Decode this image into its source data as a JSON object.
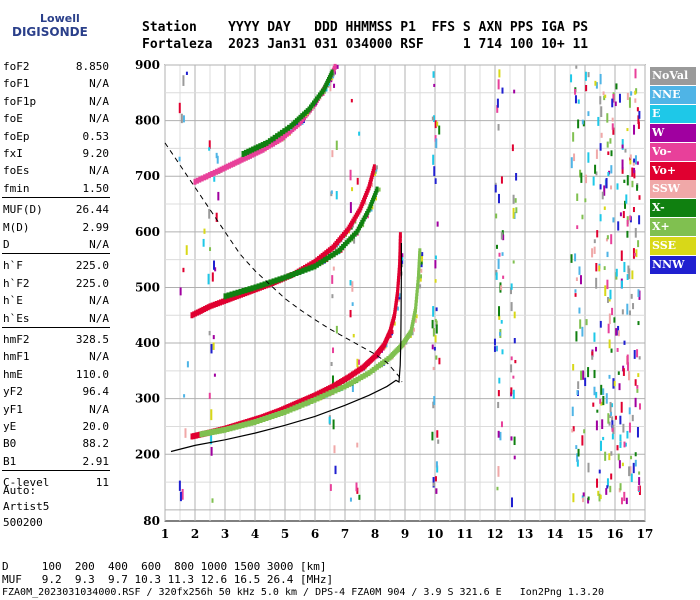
{
  "logo": {
    "line1": "Lowell",
    "line2": "DIGISONDE"
  },
  "header": {
    "row1": "Station    YYYY DAY   DDD HHMMSS P1  FFS S AXN PPS IGA PS",
    "row2": "Fortaleza  2023 Jan31 031 034000 RSF     1 714 100 10+ 11"
  },
  "params": [
    {
      "k": "foF2",
      "v": "8.850"
    },
    {
      "k": "foF1",
      "v": "N/A"
    },
    {
      "k": "foF1p",
      "v": "N/A"
    },
    {
      "k": "foE",
      "v": "N/A"
    },
    {
      "k": "foEp",
      "v": "0.53"
    },
    {
      "k": "fxI",
      "v": "9.20"
    },
    {
      "k": "foEs",
      "v": "N/A"
    },
    {
      "k": "fmin",
      "v": "1.50"
    },
    {
      "k": "MUF(D)",
      "v": "26.44"
    },
    {
      "k": "M(D)",
      "v": "2.99"
    },
    {
      "k": "D",
      "v": "N/A"
    },
    {
      "k": "h`F",
      "v": "225.0"
    },
    {
      "k": "h`F2",
      "v": "225.0"
    },
    {
      "k": "h`E",
      "v": "N/A"
    },
    {
      "k": "h`Es",
      "v": "N/A"
    },
    {
      "k": "hmF2",
      "v": "328.5"
    },
    {
      "k": "hmF1",
      "v": "N/A"
    },
    {
      "k": "hmE",
      "v": "110.0"
    },
    {
      "k": "yF2",
      "v": "96.4"
    },
    {
      "k": "yF1",
      "v": "N/A"
    },
    {
      "k": "yE",
      "v": "20.0"
    },
    {
      "k": "B0",
      "v": "88.2"
    },
    {
      "k": "B1",
      "v": "2.91"
    },
    {
      "k": "C-level",
      "v": "11"
    }
  ],
  "auto": {
    "line1": "Auto:",
    "line2": "Artist5",
    "line3": "500200"
  },
  "bottom": {
    "d_line": "D     100  200  400  600  800 1000 1500 3000 [km]",
    "muf_line": "MUF   9.2  9.3  9.7 10.3 11.3 12.6 16.5 26.4 [MHz]",
    "file_line": "FZA0M_2023031034000.RSF / 320fx256h 50 kHz 5.0 km / DPS-4 FZA0M 904 / 3.9 S 321.6 E   Ion2Png 1.3.20"
  },
  "legend": [
    {
      "label": "NoVal",
      "color": "#9a9a9a"
    },
    {
      "label": "NNE",
      "color": "#4fb4e6"
    },
    {
      "label": "E",
      "color": "#1ec8e8"
    },
    {
      "label": "W",
      "color": "#a000a0"
    },
    {
      "label": "Vo-",
      "color": "#e8409a"
    },
    {
      "label": "Vo+",
      "color": "#e00030"
    },
    {
      "label": "SSW",
      "color": "#f0a8a8"
    },
    {
      "label": "X-",
      "color": "#108010"
    },
    {
      "label": "X+",
      "color": "#80c050"
    },
    {
      "label": "SSE",
      "color": "#d8d818"
    },
    {
      "label": "NNW",
      "color": "#2020d0"
    }
  ],
  "chart_data": {
    "type": "scatter",
    "xlim": [
      1,
      17
    ],
    "ylim": [
      80,
      900
    ],
    "x_ticks": [
      1,
      2,
      3,
      4,
      5,
      6,
      7,
      8,
      9,
      10,
      11,
      12,
      13,
      14,
      15,
      16,
      17
    ],
    "y_ticks": [
      80,
      200,
      300,
      400,
      500,
      600,
      700,
      800,
      900
    ],
    "x_unit": "MHz",
    "y_unit": "km",
    "series": [
      {
        "mode": "O",
        "color": "#e00030",
        "points": [
          [
            1.9,
            232
          ],
          [
            2.4,
            238
          ],
          [
            3.0,
            246
          ],
          [
            3.6,
            256
          ],
          [
            4.2,
            266
          ],
          [
            4.8,
            278
          ],
          [
            5.4,
            292
          ],
          [
            6.0,
            306
          ],
          [
            6.6,
            322
          ],
          [
            7.1,
            338
          ],
          [
            7.6,
            356
          ],
          [
            8.0,
            376
          ],
          [
            8.3,
            396
          ],
          [
            8.5,
            420
          ],
          [
            8.65,
            450
          ],
          [
            8.75,
            490
          ],
          [
            8.82,
            540
          ],
          [
            8.85,
            600
          ]
        ]
      },
      {
        "mode": "X",
        "color": "#80c050",
        "points": [
          [
            2.2,
            236
          ],
          [
            3.0,
            244
          ],
          [
            4.0,
            258
          ],
          [
            5.0,
            276
          ],
          [
            6.0,
            298
          ],
          [
            7.0,
            322
          ],
          [
            7.8,
            346
          ],
          [
            8.5,
            374
          ],
          [
            8.9,
            396
          ],
          [
            9.2,
            420
          ],
          [
            9.35,
            460
          ],
          [
            9.45,
            520
          ],
          [
            9.5,
            570
          ]
        ]
      },
      {
        "mode": "O2",
        "color": "#e00030",
        "points": [
          [
            1.9,
            450
          ],
          [
            2.5,
            466
          ],
          [
            3.2,
            480
          ],
          [
            3.9,
            494
          ],
          [
            4.6,
            508
          ],
          [
            5.3,
            524
          ],
          [
            6.0,
            546
          ],
          [
            6.6,
            572
          ],
          [
            7.1,
            604
          ],
          [
            7.5,
            640
          ],
          [
            7.8,
            680
          ],
          [
            8.0,
            720
          ]
        ]
      },
      {
        "mode": "X2",
        "color": "#108010",
        "points": [
          [
            3.0,
            484
          ],
          [
            4.0,
            500
          ],
          [
            5.0,
            518
          ],
          [
            6.0,
            538
          ],
          [
            6.8,
            566
          ],
          [
            7.4,
            600
          ],
          [
            7.8,
            640
          ],
          [
            8.1,
            680
          ]
        ]
      },
      {
        "mode": "O3",
        "color": "#e8409a",
        "points": [
          [
            2.0,
            690
          ],
          [
            2.8,
            710
          ],
          [
            3.5,
            728
          ],
          [
            4.2,
            746
          ],
          [
            4.9,
            768
          ],
          [
            5.5,
            796
          ],
          [
            6.0,
            830
          ],
          [
            6.4,
            866
          ],
          [
            6.7,
            900
          ]
        ]
      },
      {
        "mode": "X3",
        "color": "#108010",
        "points": [
          [
            3.6,
            740
          ],
          [
            4.4,
            760
          ],
          [
            5.2,
            790
          ],
          [
            5.8,
            820
          ],
          [
            6.3,
            856
          ],
          [
            6.6,
            890
          ]
        ]
      }
    ],
    "profile": [
      [
        1.2,
        205
      ],
      [
        2.0,
        216
      ],
      [
        3.0,
        226
      ],
      [
        4.0,
        238
      ],
      [
        5.0,
        252
      ],
      [
        6.0,
        268
      ],
      [
        7.0,
        288
      ],
      [
        7.8,
        306
      ],
      [
        8.4,
        322
      ],
      [
        8.7,
        333
      ],
      [
        8.8,
        330
      ],
      [
        8.84,
        360
      ],
      [
        8.86,
        400
      ],
      [
        8.87,
        460
      ],
      [
        8.88,
        530
      ],
      [
        8.88,
        580
      ]
    ],
    "dashed_profile": [
      [
        1.0,
        760
      ],
      [
        1.5,
        720
      ],
      [
        2.0,
        680
      ],
      [
        2.5,
        640
      ],
      [
        3.0,
        600
      ],
      [
        3.5,
        560
      ],
      [
        4.0,
        530
      ],
      [
        4.5,
        505
      ],
      [
        5.0,
        480
      ],
      [
        5.5,
        460
      ],
      [
        6.0,
        442
      ],
      [
        6.5,
        425
      ],
      [
        7.0,
        410
      ],
      [
        7.5,
        395
      ],
      [
        8.0,
        380
      ],
      [
        8.4,
        365
      ],
      [
        8.8,
        340
      ],
      [
        8.9,
        330
      ]
    ]
  }
}
